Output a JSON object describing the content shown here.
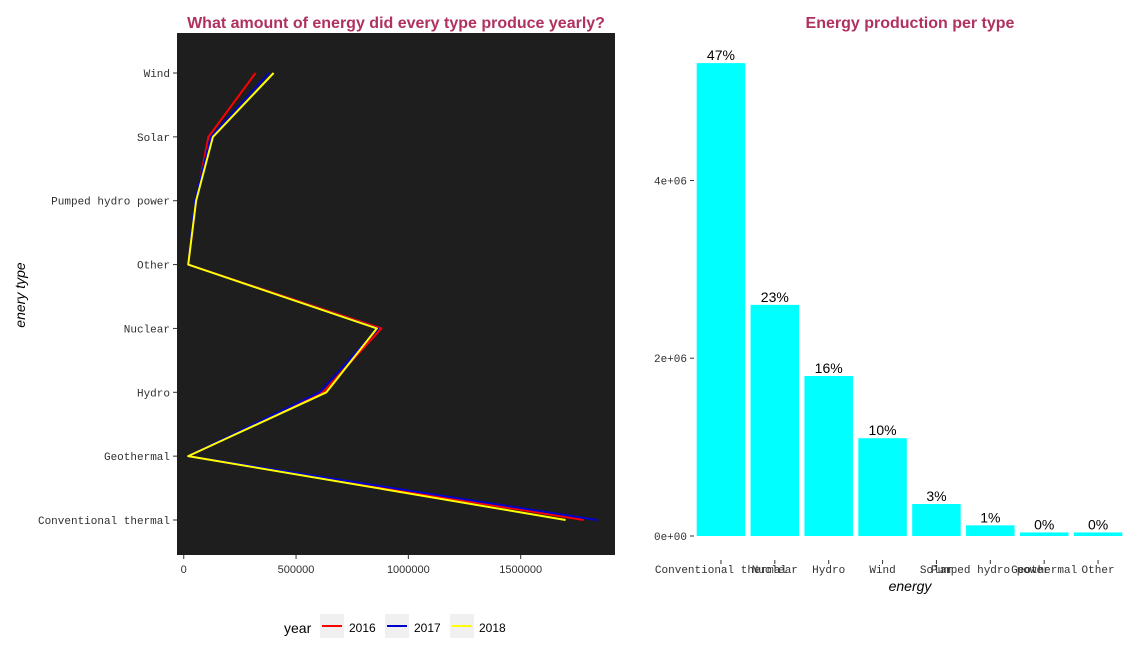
{
  "chart_data": [
    {
      "type": "line",
      "title": "What amount of energy did every type produce yearly?",
      "xlabel": "",
      "ylabel": "enery type",
      "orientation": "horizontal",
      "categories": [
        "Conventional thermal",
        "Geothermal",
        "Hydro",
        "Nuclear",
        "Other",
        "Pumped hydro power",
        "Solar",
        "Wind"
      ],
      "xlim": [
        -30000,
        1920000
      ],
      "x_ticks": [
        0,
        500000,
        1000000,
        1500000
      ],
      "x_tick_labels": [
        "0",
        "500000",
        "1000000",
        "1500000"
      ],
      "panel_background": "#1e1e1e",
      "grid": false,
      "legend": {
        "title": "year",
        "placement": "bottom"
      },
      "series": [
        {
          "name": "2016",
          "color": "#ff0000",
          "values": [
            1780000,
            20000,
            620000,
            880000,
            20000,
            55000,
            110000,
            320000
          ]
        },
        {
          "name": "2017",
          "color": "#0000cd",
          "values": [
            1840000,
            20000,
            605000,
            865000,
            20000,
            50000,
            120000,
            380000
          ]
        },
        {
          "name": "2018",
          "color": "#ffff00",
          "values": [
            1700000,
            20000,
            635000,
            860000,
            20000,
            55000,
            130000,
            400000
          ]
        }
      ]
    },
    {
      "type": "bar",
      "title": "Energy production per type",
      "xlabel": "energy",
      "ylabel": "",
      "categories": [
        "Conventional thermal",
        "Nuclear",
        "Hydro",
        "Wind",
        "Solar",
        "Pumped hydro power",
        "Geothermal",
        "Other"
      ],
      "values": [
        5320000,
        2600000,
        1800000,
        1100000,
        360000,
        120000,
        40000,
        40000
      ],
      "labels": [
        "47%",
        "23%",
        "16%",
        "10%",
        "3%",
        "1%",
        "0%",
        "0%"
      ],
      "ylim": [
        -270000,
        5580000
      ],
      "y_ticks": [
        0,
        2000000,
        4000000
      ],
      "y_tick_labels": [
        "0e+00",
        "2e+06",
        "4e+06"
      ],
      "bar_color": "#00ffff",
      "grid": false
    }
  ]
}
